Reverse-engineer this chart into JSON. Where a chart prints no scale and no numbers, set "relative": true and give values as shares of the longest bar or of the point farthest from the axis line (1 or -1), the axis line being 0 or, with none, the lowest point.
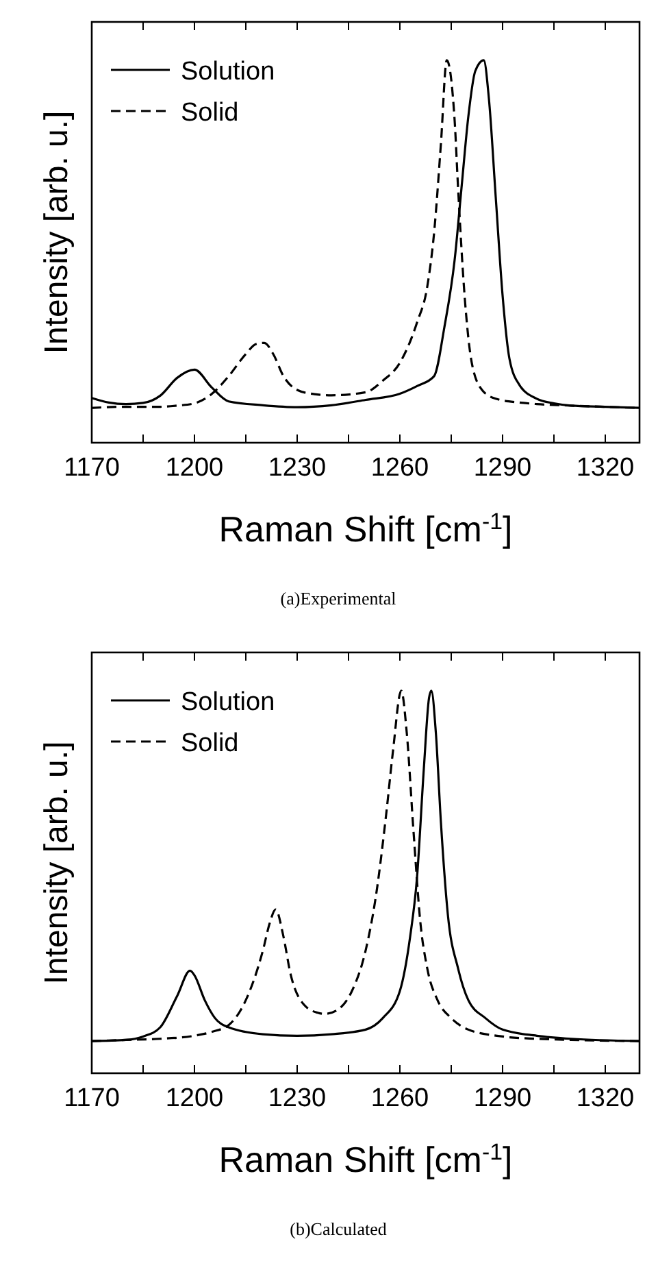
{
  "chart_data": [
    {
      "type": "line",
      "title": "(a)Experimental",
      "xlabel": "Raman Shift [cm$^{-1}$]",
      "ylabel": "Intensity [arb. u.]",
      "relative": true,
      "xlim": [
        1170,
        1330
      ],
      "xticks": [
        1170,
        {
          "value": 1185,
          "label": null
        },
        1200,
        {
          "value": 1215,
          "label": null
        },
        1230,
        {
          "value": 1245,
          "label": null
        },
        1260,
        {
          "value": 1275,
          "label": null
        },
        1290,
        {
          "value": 1305,
          "label": null
        },
        1320
      ],
      "legend": "top left",
      "grid": false,
      "series": [
        {
          "name": "Solution",
          "color": "#000000",
          "line_style": "solid",
          "x": [
            1170,
            1175,
            1180,
            1185,
            1190,
            1195,
            1200,
            1205,
            1210,
            1220,
            1230,
            1240,
            1250,
            1260,
            1265,
            1270,
            1273,
            1276,
            1278,
            1280,
            1282,
            1284.5,
            1286,
            1288,
            1290,
            1292,
            1295,
            1300,
            1305,
            1310,
            1320,
            1330
          ],
          "values": [
            0.117,
            0.105,
            0.101,
            0.104,
            0.123,
            0.17,
            0.191,
            0.145,
            0.108,
            0.098,
            0.093,
            0.098,
            0.112,
            0.128,
            0.148,
            0.174,
            0.302,
            0.478,
            0.666,
            0.853,
            0.971,
            1,
            0.9,
            0.642,
            0.385,
            0.22,
            0.15,
            0.115,
            0.103,
            0.097,
            0.094,
            0.091
          ]
        },
        {
          "name": "Solid",
          "color": "#000000",
          "line_style": "dashed",
          "x": [
            1170,
            1180,
            1190,
            1195,
            1200,
            1205,
            1210,
            1215,
            1218,
            1220.4,
            1223,
            1226,
            1230,
            1235,
            1240,
            1250,
            1255,
            1260,
            1265,
            1268,
            1270,
            1272,
            1273.7,
            1276,
            1277,
            1279,
            1281,
            1284,
            1288,
            1295,
            1300,
            1310,
            1330
          ],
          "values": [
            0.091,
            0.094,
            0.094,
            0.097,
            0.103,
            0.127,
            0.174,
            0.232,
            0.258,
            0.261,
            0.232,
            0.174,
            0.138,
            0.127,
            0.124,
            0.132,
            0.162,
            0.209,
            0.314,
            0.408,
            0.549,
            0.783,
            1,
            0.842,
            0.666,
            0.373,
            0.209,
            0.138,
            0.115,
            0.105,
            0.101,
            0.097,
            0.091
          ]
        }
      ]
    },
    {
      "type": "line",
      "title": "(b)Calculated",
      "xlabel": "Raman Shift [cm$^{-1}$]",
      "ylabel": "Intensity [arb. u.]",
      "relative": true,
      "xlim": [
        1170,
        1330
      ],
      "xticks": [
        1170,
        {
          "value": 1185,
          "label": null
        },
        1200,
        {
          "value": 1215,
          "label": null
        },
        1230,
        {
          "value": 1245,
          "label": null
        },
        1260,
        {
          "value": 1275,
          "label": null
        },
        1290,
        {
          "value": 1305,
          "label": null
        },
        1320
      ],
      "legend": "top left",
      "grid": false,
      "series": [
        {
          "name": "Solution",
          "color": "#000000",
          "line_style": "solid",
          "x": [
            1170,
            1180,
            1185,
            1190,
            1195,
            1198.7,
            1200,
            1203,
            1206,
            1210,
            1220,
            1230,
            1240,
            1250,
            1255,
            1260,
            1263,
            1265,
            1267,
            1268.5,
            1269.2,
            1270.5,
            1272,
            1274,
            1277,
            1280,
            1285,
            1290,
            1300,
            1310,
            1330
          ],
          "values": [
            0.084,
            0.087,
            0.096,
            0.12,
            0.203,
            0.268,
            0.256,
            0.191,
            0.144,
            0.12,
            0.102,
            0.098,
            0.102,
            0.114,
            0.144,
            0.215,
            0.357,
            0.511,
            0.796,
            0.98,
            1,
            0.891,
            0.654,
            0.416,
            0.274,
            0.191,
            0.144,
            0.114,
            0.098,
            0.09,
            0.084
          ]
        },
        {
          "name": "Solid",
          "color": "#000000",
          "line_style": "dashed",
          "x": [
            1170,
            1180,
            1190,
            1200,
            1205,
            1210,
            1215,
            1220,
            1222,
            1223.7,
            1226,
            1228,
            1232,
            1236,
            1238,
            1242,
            1246,
            1250,
            1253,
            1256,
            1258,
            1260.4,
            1262,
            1264,
            1266,
            1268,
            1271,
            1275,
            1280,
            1290,
            1300,
            1310,
            1330
          ],
          "values": [
            0.084,
            0.087,
            0.09,
            0.098,
            0.108,
            0.126,
            0.191,
            0.321,
            0.393,
            0.428,
            0.357,
            0.262,
            0.179,
            0.158,
            0.155,
            0.167,
            0.215,
            0.321,
            0.463,
            0.677,
            0.843,
            1,
            0.891,
            0.63,
            0.393,
            0.274,
            0.191,
            0.144,
            0.114,
            0.096,
            0.09,
            0.087,
            0.084
          ]
        }
      ]
    }
  ]
}
